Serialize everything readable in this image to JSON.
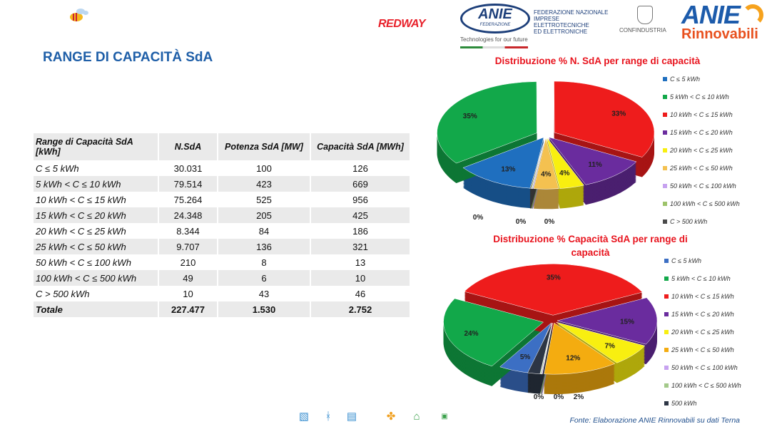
{
  "header": {
    "title": "RANGE DI CAPACITÀ SdA",
    "logos": {
      "redway": "REDWAY",
      "anie_federazione": "ANIE",
      "federazione_sub": "FEDERAZIONE",
      "federazione_text": [
        "FEDERAZIONE NAZIONALE",
        "IMPRESE ELETTROTECNICHE",
        "ED ELETTRONICHE"
      ],
      "tagline": "Technologies for our future",
      "confindustria": "CONFINDUSTRIA",
      "anie_rinnovabili": "ANIE",
      "rinnovabili": "Rinnovabili"
    }
  },
  "table": {
    "headers": [
      "Range di Capacità SdA [kWh]",
      "N.SdA",
      "Potenza SdA [MW]",
      "Capacità SdA [MWh]"
    ],
    "rows": [
      [
        "C ≤ 5 kWh",
        "30.031",
        "100",
        "126"
      ],
      [
        "5 kWh < C ≤ 10 kWh",
        "79.514",
        "423",
        "669"
      ],
      [
        "10 kWh < C ≤ 15 kWh",
        "75.264",
        "525",
        "956"
      ],
      [
        "15 kWh < C  ≤ 20 kWh",
        "24.348",
        "205",
        "425"
      ],
      [
        "20 kWh < C  ≤ 25 kWh",
        "8.344",
        "84",
        "186"
      ],
      [
        "25 kWh < C  ≤ 50 kWh",
        "9.707",
        "136",
        "321"
      ],
      [
        "50 kWh < C  ≤ 100 kWh",
        "210",
        "8",
        "13"
      ],
      [
        "100 kWh < C  ≤ 500 kWh",
        "49",
        "6",
        "10"
      ],
      [
        "C  > 500 kWh",
        "10",
        "43",
        "46"
      ],
      [
        "Totale",
        "227.477",
        "1.530",
        "2.752"
      ]
    ]
  },
  "chart_data": [
    {
      "type": "pie",
      "title": "Distribuzione % N. SdA per range di capacità",
      "categories": [
        "C ≤ 5 kWh",
        "5 kWh < C ≤ 10 kWh",
        "10 kWh < C ≤ 15 kWh",
        "15 kWh < C  ≤ 20 kWh",
        "20 kWh < C  ≤ 25 kWh",
        "25 kWh < C  ≤ 50 kWh",
        "50 kWh < C  ≤ 100 kWh",
        "100 kWh < C  ≤ 500 kWh",
        "C  > 500 kWh"
      ],
      "values": [
        13,
        35,
        33,
        11,
        4,
        4,
        0,
        0,
        0
      ],
      "labels": [
        "13%",
        "35%",
        "33%",
        "11%",
        "4%",
        "4%",
        "0%",
        "0%",
        "0%"
      ],
      "colors": [
        "#1f6fbf",
        "#12a84a",
        "#ee1c1c",
        "#6a2c9e",
        "#f8ef10",
        "#f4c150",
        "#c7a2f0",
        "#9dc36a",
        "#4a4a4a"
      ],
      "legend": "right"
    },
    {
      "type": "pie",
      "title": "Distribuzione % Capacità SdA per range di capacità",
      "categories": [
        "C ≤ 5 kWh",
        "5 kWh < C ≤ 10 kWh",
        "10 kWh < C ≤ 15 kWh",
        "15 kWh < C  ≤ 20 kWh",
        "20 kWh < C  ≤ 25 kWh",
        "25 kWh < C  ≤ 50 kWh",
        "50 kWh < C  ≤ 100 kWh",
        "100 kWh < C  ≤ 500 kWh",
        "500 kWh"
      ],
      "values": [
        5,
        24,
        35,
        15,
        7,
        12,
        0,
        0,
        2
      ],
      "labels": [
        "5%",
        "24%",
        "35%",
        "15%",
        "7%",
        "12%",
        "0%",
        "0%",
        "2%"
      ],
      "colors": [
        "#3c6fc4",
        "#12a84a",
        "#ee1c1c",
        "#6a2c9e",
        "#f8ef10",
        "#f4ac10",
        "#c7a2f0",
        "#a3c98a",
        "#2d3645"
      ],
      "legend": "right"
    }
  ],
  "footer": {
    "source": "Fonte: Elaborazione ANIE Rinnovabili su dati Terna"
  }
}
